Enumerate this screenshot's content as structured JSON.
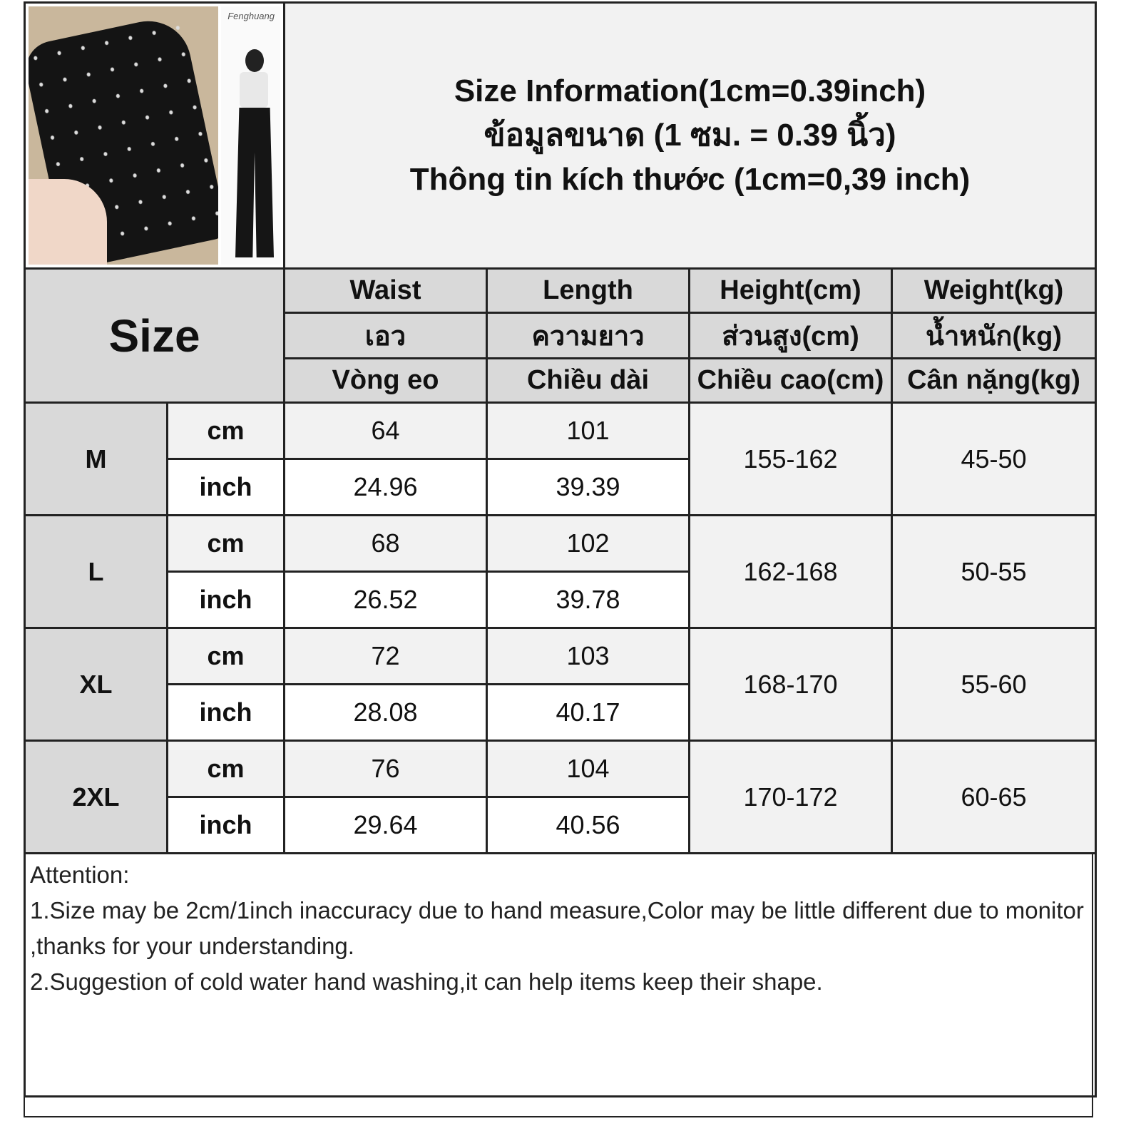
{
  "header": {
    "title_lines": [
      "Size Information(1cm=0.39inch)",
      "ข้อมูลขนาด (1 ซม. = 0.39 นิ้ว)",
      "Thông tin kích thước (1cm=0,39 inch)"
    ],
    "image_watermark": "Fenghuang"
  },
  "table": {
    "size_label": "Size",
    "columns": [
      {
        "en": "Waist",
        "th": "เอว",
        "vi": "Vòng eo"
      },
      {
        "en": "Length",
        "th": "ความยาว",
        "vi": "Chiều dài"
      },
      {
        "en": "Height(cm)",
        "th": "ส่วนสูง(cm)",
        "vi": "Chiều cao(cm)"
      },
      {
        "en": "Weight(kg)",
        "th": "น้ำหนัก(kg)",
        "vi": "Cân nặng(kg)"
      }
    ],
    "units": {
      "cm": "cm",
      "inch": "inch"
    },
    "rows": [
      {
        "size": "M",
        "cm": {
          "waist": "64",
          "length": "101"
        },
        "inch": {
          "waist": "24.96",
          "length": "39.39"
        },
        "height": "155-162",
        "weight": "45-50"
      },
      {
        "size": "L",
        "cm": {
          "waist": "68",
          "length": "102"
        },
        "inch": {
          "waist": "26.52",
          "length": "39.78"
        },
        "height": "162-168",
        "weight": "50-55"
      },
      {
        "size": "XL",
        "cm": {
          "waist": "72",
          "length": "103"
        },
        "inch": {
          "waist": "28.08",
          "length": "40.17"
        },
        "height": "168-170",
        "weight": "55-60"
      },
      {
        "size": "2XL",
        "cm": {
          "waist": "76",
          "length": "104"
        },
        "inch": {
          "waist": "29.64",
          "length": "40.56"
        },
        "height": "170-172",
        "weight": "60-65"
      }
    ]
  },
  "attention": {
    "heading": "Attention:",
    "notes": [
      "1.Size may be 2cm/1inch inaccuracy due to hand measure,Color may be little different due to monitor ,thanks for your understanding.",
      "2.Suggestion of cold water hand washing,it can help items keep their shape."
    ]
  },
  "colors": {
    "header_bg": "#d9d9d9",
    "cm_row_bg": "#f2f2f2",
    "inch_row_bg": "#ffffff",
    "border": "#222222"
  }
}
